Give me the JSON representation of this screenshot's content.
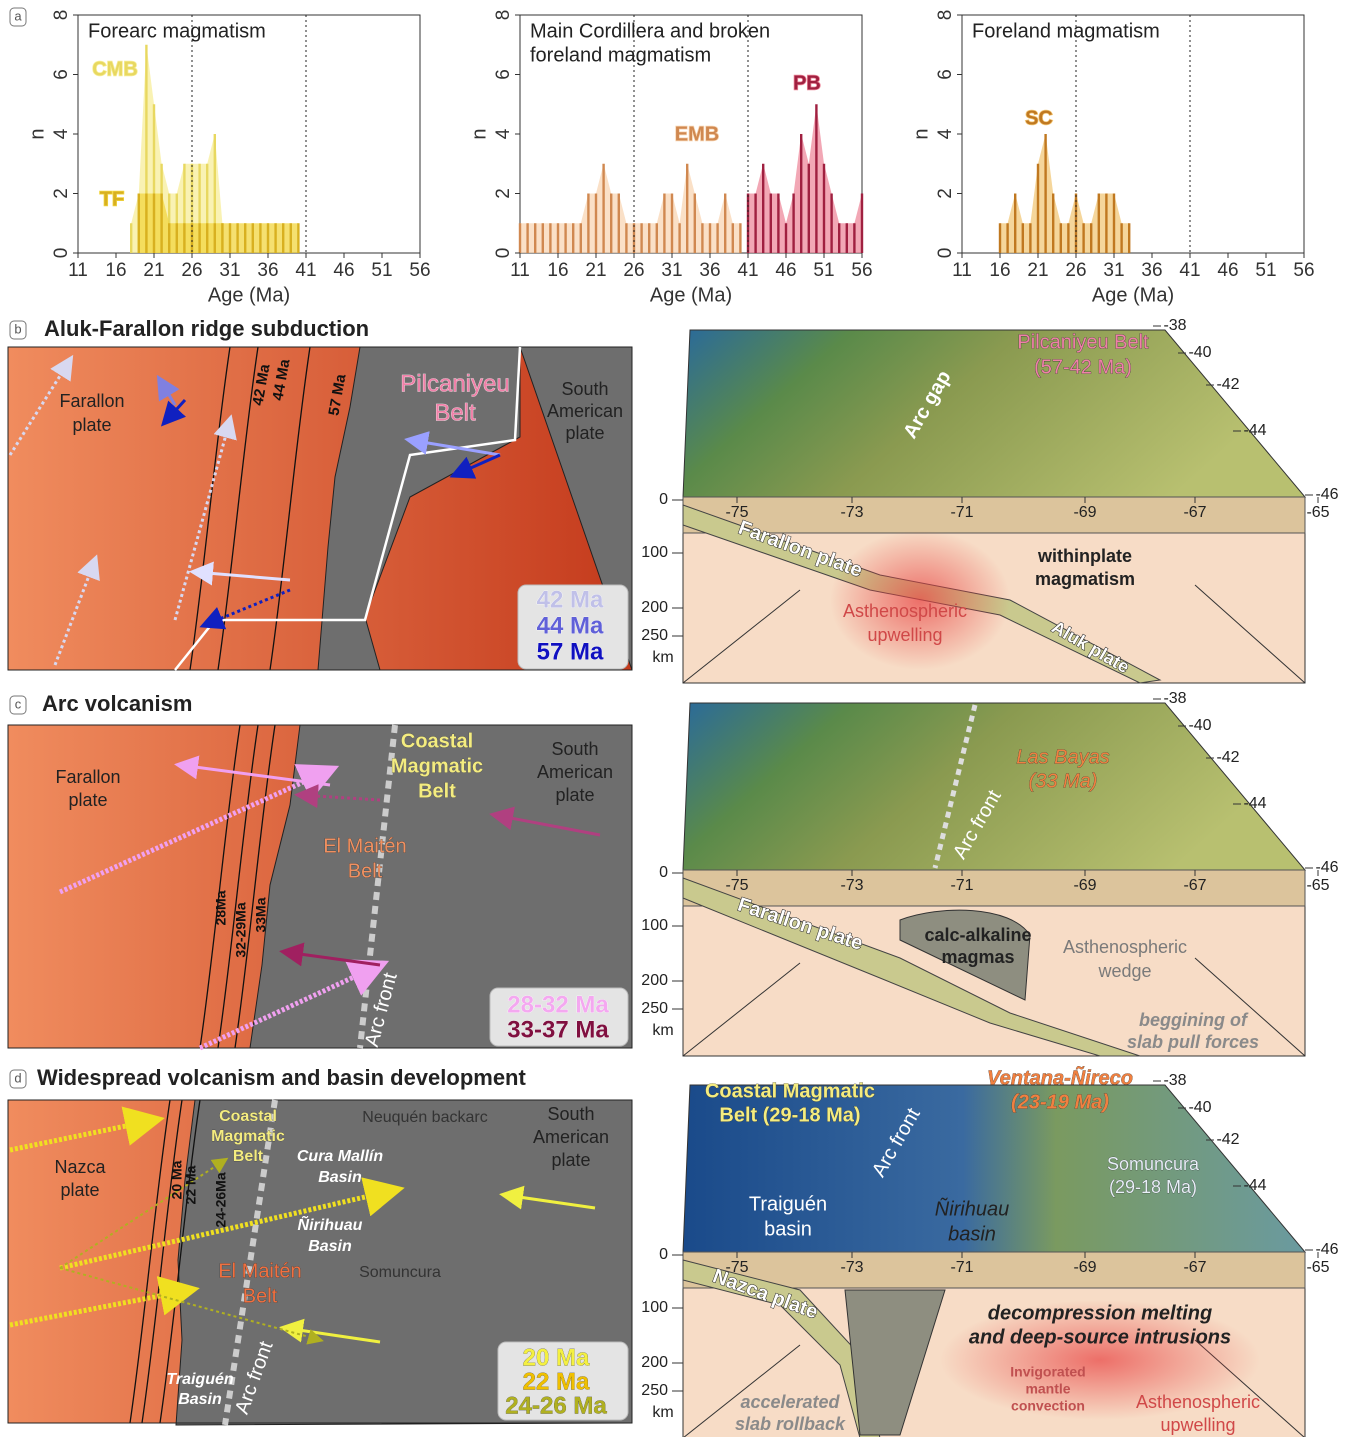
{
  "chart_data": [
    {
      "type": "bar",
      "panel": "a",
      "title": [
        "Forearc magmatism"
      ],
      "xlabel": "Age (Ma)",
      "ylabel": "n",
      "xlim": [
        11,
        56
      ],
      "xticks": [
        11,
        16,
        21,
        26,
        31,
        36,
        41,
        46,
        51,
        56
      ],
      "ylim": [
        0,
        8
      ],
      "yticks": [
        0,
        2,
        4,
        6,
        8
      ],
      "vlines": [
        26,
        41
      ],
      "series": [
        {
          "name": "CMB",
          "color": "#f7ee9a",
          "edge": "#e8d860",
          "x": [
            18,
            19,
            20,
            21,
            22,
            23,
            24,
            25,
            26,
            27,
            28,
            29,
            30
          ],
          "values": [
            1,
            2,
            7,
            5,
            3,
            2,
            2,
            3,
            3,
            3,
            3,
            4,
            1
          ]
        },
        {
          "name": "TF",
          "color": "#f2d640",
          "edge": "#d8b020",
          "x": [
            19,
            20,
            21,
            22,
            23,
            24,
            25,
            26,
            27,
            28,
            29,
            30,
            31,
            32,
            33,
            34,
            35,
            36,
            37,
            38,
            39,
            40
          ],
          "values": [
            2,
            2,
            2,
            2,
            1,
            1,
            1,
            1,
            1,
            1,
            1,
            1,
            1,
            1,
            1,
            1,
            1,
            1,
            1,
            1,
            1,
            1
          ]
        }
      ]
    },
    {
      "type": "bar",
      "title": [
        "Main Cordillera and broken",
        "foreland magmatism"
      ],
      "xlabel": "Age (Ma)",
      "ylabel": "n",
      "xlim": [
        11,
        56
      ],
      "xticks": [
        11,
        16,
        21,
        26,
        31,
        36,
        41,
        46,
        51,
        56
      ],
      "ylim": [
        0,
        8
      ],
      "yticks": [
        0,
        2,
        4,
        6,
        8
      ],
      "vlines": [
        26,
        41
      ],
      "series": [
        {
          "name": "EMB",
          "color": "#f8d6b4",
          "edge": "#d08850",
          "x": [
            11,
            12,
            13,
            14,
            15,
            16,
            17,
            18,
            19,
            20,
            21,
            22,
            23,
            24,
            25,
            26,
            27,
            28,
            29,
            30,
            31,
            32,
            33,
            34,
            35,
            36,
            37,
            38,
            39,
            40
          ],
          "values": [
            1,
            1,
            1,
            1,
            1,
            1,
            1,
            1,
            1,
            2,
            2,
            3,
            2,
            2,
            1,
            1,
            1,
            1,
            1,
            2,
            2,
            1,
            3,
            2,
            1,
            1,
            1,
            2,
            1,
            1
          ]
        },
        {
          "name": "PB",
          "color": "#ee8a9c",
          "edge": "#a02040",
          "x": [
            41,
            42,
            43,
            44,
            45,
            46,
            47,
            48,
            49,
            50,
            51,
            52,
            53,
            54,
            55,
            56
          ],
          "values": [
            2,
            2,
            3,
            2,
            2,
            1,
            2,
            4,
            3,
            5,
            3,
            2,
            1,
            1,
            1,
            2
          ]
        }
      ]
    },
    {
      "type": "bar",
      "title": [
        "Foreland magmatism"
      ],
      "xlabel": "Age (Ma)",
      "ylabel": "n",
      "xlim": [
        11,
        56
      ],
      "xticks": [
        11,
        16,
        21,
        26,
        31,
        36,
        41,
        46,
        51,
        56
      ],
      "ylim": [
        0,
        8
      ],
      "yticks": [
        0,
        2,
        4,
        6,
        8
      ],
      "vlines": [
        26,
        41
      ],
      "series": [
        {
          "name": "SC",
          "color": "#f2c87a",
          "edge": "#c07820",
          "x": [
            16,
            17,
            18,
            19,
            20,
            21,
            22,
            23,
            24,
            25,
            26,
            27,
            28,
            29,
            30,
            31,
            32,
            33
          ],
          "values": [
            1,
            1,
            2,
            1,
            1,
            3,
            4,
            2,
            1,
            1,
            2,
            1,
            1,
            2,
            2,
            2,
            1,
            1
          ]
        }
      ]
    }
  ],
  "block_axes": {
    "lat": [
      -38,
      -40,
      -42,
      -44,
      -46
    ],
    "lon": [
      -75,
      -73,
      -71,
      -69,
      -67,
      -65
    ],
    "depth": [
      0,
      100,
      200,
      250
    ],
    "depth_unit": "km"
  },
  "panel_b": {
    "label": "b",
    "title": "Aluk-Farallon ridge subduction",
    "map": {
      "plate": [
        "Farallon",
        "plate"
      ],
      "ridges": [
        "42 Ma",
        "44 Ma",
        "57 Ma"
      ],
      "belt": [
        "Pilcaniyeu",
        "Belt"
      ],
      "continent": [
        "South",
        "American",
        "plate"
      ],
      "legend": [
        "42 Ma",
        "44 Ma",
        "57 Ma"
      ]
    },
    "block": {
      "belt": [
        "Pilcaniyeu Belt",
        "(57-42 Ma)"
      ],
      "gap": "Arc gap",
      "slab": "Farallon plate",
      "within": [
        "withinplate",
        "magmatism"
      ],
      "astheno": [
        "Asthenospheric",
        "upwelling"
      ],
      "aluk": "Aluk plate"
    }
  },
  "panel_c": {
    "label": "c",
    "title": "Arc volcanism",
    "map": {
      "plate": [
        "Farallon",
        "plate"
      ],
      "coastal": [
        "Coastal",
        "Magmatic",
        "Belt"
      ],
      "continent": [
        "South",
        "American",
        "plate"
      ],
      "maiten": [
        "El Maitén",
        "Belt"
      ],
      "trenches": [
        "28Ma",
        "32-29Ma",
        "33Ma"
      ],
      "front": "Arc front",
      "legend": [
        "28-32 Ma",
        "33-37 Ma"
      ]
    },
    "block": {
      "bayas": [
        "Las Bayas",
        "(33 Ma)"
      ],
      "front": "Arc front",
      "slab": "Farallon plate",
      "calc": [
        "calc-alkaline",
        "magmas"
      ],
      "wedge": [
        "Asthenospheric",
        "wedge"
      ],
      "pull": [
        "beggining of",
        "slab pull forces"
      ]
    }
  },
  "panel_d": {
    "label": "d",
    "title": "Widespread volcanism and basin development",
    "map": {
      "plate": [
        "Nazca",
        "plate"
      ],
      "coastal": [
        "Coastal",
        "Magmatic",
        "Belt"
      ],
      "backarc": "Neuquén backarc",
      "continent": [
        "South",
        "American",
        "plate"
      ],
      "cura": [
        "Cura Mallín",
        "Basin"
      ],
      "niri": [
        "Ñirihuau",
        "Basin"
      ],
      "somun": "Somuncura",
      "maiten": [
        "El Maitén",
        "Belt"
      ],
      "traiguen": [
        "Traiguén",
        "Basin"
      ],
      "front": "Arc front",
      "trenches": [
        "20 Ma",
        "22 Ma",
        "24-26Ma"
      ],
      "legend": [
        "20 Ma",
        "22 Ma",
        "24-26 Ma"
      ]
    },
    "block": {
      "coastal": [
        "Coastal Magmatic",
        "Belt (29-18 Ma)"
      ],
      "ventana": [
        "Ventana-Ñireco",
        "(23-19 Ma)"
      ],
      "front": "Arc front",
      "somun": [
        "Somuncura",
        "(29-18 Ma)"
      ],
      "traiguen": [
        "Traiguén",
        "basin"
      ],
      "niri": [
        "Ñirihuau",
        "basin"
      ],
      "slab": "Nazca plate",
      "decomp": [
        "decompression melting",
        "and deep-source intrusions"
      ],
      "conv": [
        "Invigorated",
        "mantle",
        "convection"
      ],
      "rollback": [
        "accelerated",
        "slab rollback"
      ],
      "astheno": [
        "Asthenospheric",
        "upwelling"
      ]
    }
  }
}
